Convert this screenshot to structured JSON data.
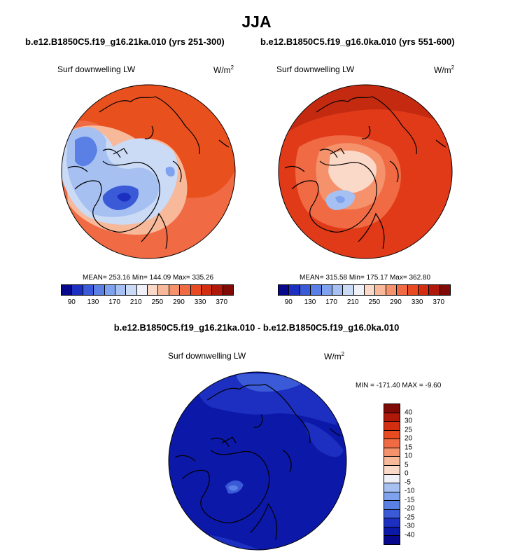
{
  "title": "JJA",
  "left_panel": {
    "run": "b.e12.B1850C5.f19_g16.21ka.010 (yrs 251-300)",
    "label": "Surf downwelling LW",
    "units": "W/m",
    "units_sup": "2",
    "stats": "MEAN= 253.16  Min= 144.09  Max= 335.26"
  },
  "right_panel": {
    "run": "b.e12.B1850C5.f19_g16.0ka.010 (yrs 551-600)",
    "label": "Surf downwelling LW",
    "units": "W/m",
    "units_sup": "2",
    "stats": "MEAN= 315.58  Min= 175.17  Max= 362.80"
  },
  "diff_panel": {
    "run": "b.e12.B1850C5.f19_g16.21ka.010 - b.e12.B1850C5.f19_g16.0ka.010",
    "label": "Surf downwelling LW",
    "units": "W/m",
    "units_sup": "2",
    "stats": "MIN = -171.40 MAX =  -9.60"
  },
  "abs_colorbar": {
    "ticks": [
      "90",
      "130",
      "170",
      "210",
      "250",
      "290",
      "330",
      "370"
    ],
    "colors": [
      "#08088c",
      "#1c2fc0",
      "#3a5ad8",
      "#5a80e6",
      "#7fa2ee",
      "#a6c0f2",
      "#cbdbf6",
      "#f0f0f8",
      "#fbd9c8",
      "#f8b89a",
      "#f5926c",
      "#f06a44",
      "#e84a22",
      "#d42e12",
      "#b0180a",
      "#800a05"
    ]
  },
  "diff_colorbar": {
    "ticks": [
      "40",
      "30",
      "25",
      "20",
      "15",
      "10",
      "5",
      "0",
      "-5",
      "-10",
      "-15",
      "-20",
      "-25",
      "-30",
      "-40"
    ],
    "colors": [
      "#800a05",
      "#b0180a",
      "#d42e12",
      "#e84a22",
      "#f06a44",
      "#f5926c",
      "#f8b89a",
      "#fbd9c8",
      "#f0f0f8",
      "#a6c0f2",
      "#7fa2ee",
      "#5a80e6",
      "#3a5ad8",
      "#1c2fc0",
      "#0c18a8",
      "#08088c"
    ]
  },
  "colors": {
    "ocean_blue": "#1230c8",
    "deep_blue": "#0a1aa8",
    "warm_red": "#e8501e",
    "dark_red": "#b81e0c",
    "coast": "#000000"
  }
}
